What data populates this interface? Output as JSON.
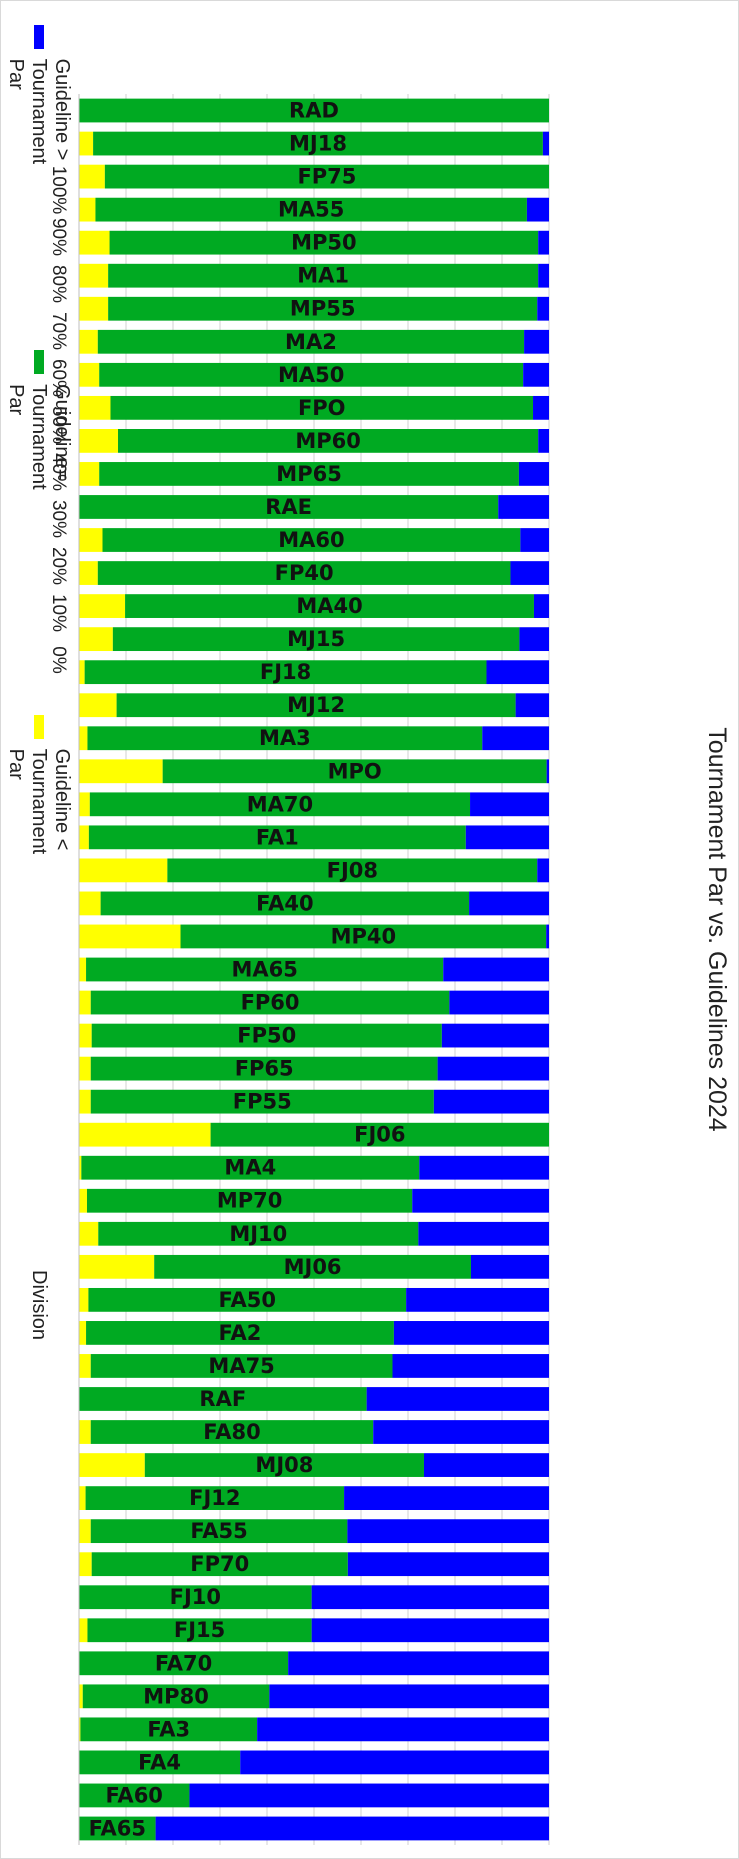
{
  "chart_data": {
    "type": "bar",
    "stacked": "percent",
    "orientation": "horizontal",
    "title": "Tournament Par vs. Guidelines 2024",
    "xlim": [
      0,
      100
    ],
    "ticks": [
      "0%",
      "10%",
      "20%",
      "30%",
      "40%",
      "50%",
      "60%",
      "70%",
      "80%",
      "90%",
      "100%"
    ],
    "grid": true,
    "legend_position": "bottom",
    "categories": [
      "RAD",
      "MJ18",
      "FP75",
      "MA55",
      "MP50",
      "MA1",
      "MP55",
      "MA2",
      "MA50",
      "FPO",
      "MP60",
      "MP65",
      "RAE",
      "MA60",
      "FP40",
      "MA40",
      "MJ15",
      "FJ18",
      "MJ12",
      "MA3",
      "MPO",
      "MA70",
      "FA1",
      "FJ08",
      "FA40",
      "MP40",
      "MA65",
      "FP60",
      "FP50",
      "FP65",
      "FP55",
      "FJ06",
      "MA4",
      "MP70",
      "MJ10",
      "MJ06",
      "FA50",
      "FA2",
      "MA75",
      "RAF",
      "FA80",
      "MJ08",
      "FJ12",
      "FA55",
      "FP70",
      "FJ10",
      "FJ15",
      "FA70",
      "MP80",
      "FA3",
      "FA4",
      "FA60",
      "FA65"
    ],
    "series": [
      {
        "name": "Guideline < Tournament Par",
        "color": "#FFFF00",
        "values": [
          0,
          3,
          5.5,
          3.5,
          6.5,
          6.2,
          6.2,
          4,
          4.3,
          6.7,
          8.3,
          4.3,
          0,
          5,
          4,
          9.8,
          7.2,
          1.2,
          8,
          1.8,
          17.8,
          2.3,
          2.1,
          18.8,
          4.6,
          21.6,
          1.5,
          2.5,
          2.7,
          2.5,
          2.5,
          28,
          0.5,
          1.7,
          4.1,
          16,
          2,
          1.5,
          2.5,
          0,
          2.5,
          14,
          1.4,
          2.5,
          2.7,
          0,
          1.8,
          0,
          0.8,
          0.3,
          0,
          0,
          0
        ]
      },
      {
        "name": "Guideline= Tournament Par",
        "color": "#00AA22",
        "values": [
          100,
          95.7,
          94.5,
          91.8,
          91.2,
          91.5,
          91.3,
          90.7,
          90.2,
          89.9,
          89.4,
          89.3,
          89.2,
          88.9,
          87.8,
          87,
          86.5,
          85.5,
          84.9,
          84,
          81.7,
          80.9,
          80.2,
          78.7,
          78.4,
          77.8,
          76,
          76.3,
          74.5,
          73.8,
          73,
          72,
          71.9,
          69.2,
          68.1,
          67.4,
          67.6,
          65.5,
          64.2,
          61.2,
          60.1,
          59.4,
          55,
          54.6,
          54.5,
          49.5,
          47.7,
          44.5,
          39.7,
          37.6,
          34.3,
          23.5,
          16.3
        ]
      },
      {
        "name": "Guideline > Tournament Par",
        "color": "#0000FF",
        "values": [
          0,
          1.3,
          0,
          4.7,
          2.3,
          2.3,
          2.5,
          5.3,
          5.5,
          3.4,
          2.3,
          6.4,
          10.8,
          6.1,
          8.2,
          3.2,
          6.3,
          13.3,
          7.1,
          14.2,
          0.5,
          16.8,
          17.7,
          2.5,
          17,
          0.6,
          22.5,
          21.2,
          22.8,
          23.7,
          24.5,
          0,
          27.6,
          29.1,
          27.8,
          16.6,
          30.4,
          33,
          33.3,
          38.8,
          37.4,
          26.6,
          43.6,
          42.9,
          42.8,
          50.5,
          50.5,
          55.5,
          59.5,
          62.1,
          65.7,
          76.5,
          83.7
        ]
      }
    ],
    "legend": {
      "title": "Division",
      "entries": [
        "Guideline > Tournament Par",
        "Guideline= Tournament Par",
        "Guideline < Tournament Par"
      ]
    }
  }
}
